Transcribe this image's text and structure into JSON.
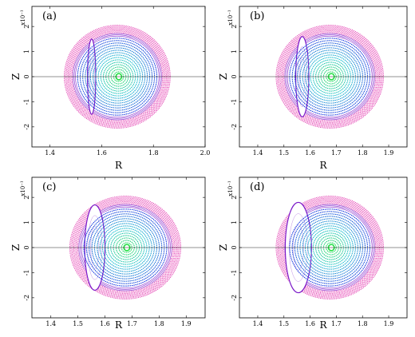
{
  "chart_data": [
    {
      "type": "scatter",
      "panel_label": "(a)",
      "xlabel": "R",
      "ylabel": "Z",
      "y_exponent": "x10⁻¹",
      "xlim": [
        1.33,
        2.0
      ],
      "ylim": [
        -0.28,
        0.28
      ],
      "xticks": [
        "1.4",
        "1.6",
        "1.8",
        "2.0"
      ],
      "xtick_values": [
        1.4,
        1.6,
        1.8,
        2.0
      ],
      "yticks": [
        "2",
        "1",
        "0",
        "-1",
        "-2"
      ],
      "ytick_values": [
        0.2,
        0.1,
        0.0,
        -0.1,
        -0.2
      ],
      "center_R": 1.66,
      "outer_radius": 0.205,
      "axis_line_z": 0.0,
      "shape_description": "concentric flux surfaces with narrow crescent island on the inboard side",
      "island": {
        "inner_R": 1.545,
        "width": 0.032,
        "z_extent": 0.15
      }
    },
    {
      "type": "scatter",
      "panel_label": "(b)",
      "xlabel": "R",
      "ylabel": "Z",
      "y_exponent": "x10⁻¹",
      "xlim": [
        1.33,
        1.97
      ],
      "ylim": [
        -0.28,
        0.28
      ],
      "xticks": [
        "1.4",
        "1.5",
        "1.6",
        "1.7",
        "1.8",
        "1.9"
      ],
      "xtick_values": [
        1.4,
        1.5,
        1.6,
        1.7,
        1.8,
        1.9
      ],
      "yticks": [
        "2",
        "1",
        "0",
        "-1",
        "-2"
      ],
      "ytick_values": [
        0.2,
        0.1,
        0.0,
        -0.1,
        -0.2
      ],
      "center_R": 1.675,
      "outer_radius": 0.205,
      "axis_line_z": 0.0,
      "island": {
        "inner_R": 1.545,
        "width": 0.05,
        "z_extent": 0.16
      }
    },
    {
      "type": "scatter",
      "panel_label": "(c)",
      "xlabel": "R",
      "ylabel": "Z",
      "y_exponent": "x10⁻¹",
      "xlim": [
        1.33,
        1.97
      ],
      "ylim": [
        -0.28,
        0.28
      ],
      "xticks": [
        "1.4",
        "1.5",
        "1.6",
        "1.7",
        "1.8",
        "1.9"
      ],
      "xtick_values": [
        1.4,
        1.5,
        1.6,
        1.7,
        1.8,
        1.9
      ],
      "yticks": [
        "2",
        "1",
        "0",
        "-1",
        "-2"
      ],
      "ytick_values": [
        0.2,
        0.1,
        0.0,
        -0.1,
        -0.2
      ],
      "center_R": 1.675,
      "outer_radius": 0.205,
      "axis_line_z": 0.0,
      "island": {
        "inner_R": 1.525,
        "width": 0.075,
        "z_extent": 0.17
      }
    },
    {
      "type": "scatter",
      "panel_label": "(d)",
      "xlabel": "R",
      "ylabel": "Z",
      "y_exponent": "x10⁻¹",
      "xlim": [
        1.33,
        1.97
      ],
      "ylim": [
        -0.28,
        0.28
      ],
      "xticks": [
        "1.4",
        "1.5",
        "1.6",
        "1.7",
        "1.8",
        "1.9"
      ],
      "xtick_values": [
        1.4,
        1.5,
        1.6,
        1.7,
        1.8,
        1.9
      ],
      "yticks": [
        "2",
        "1",
        "0",
        "-1",
        "-2"
      ],
      "ytick_values": [
        0.2,
        0.1,
        0.0,
        -0.1,
        -0.2
      ],
      "center_R": 1.675,
      "outer_radius": 0.205,
      "axis_line_z": 0.0,
      "island": {
        "inner_R": 1.505,
        "width": 0.1,
        "z_extent": 0.18
      }
    }
  ],
  "colors": {
    "outer_band": "#e040b0",
    "outer_band_light": "#f070c8",
    "core_inner": "#20e040",
    "core_mid": "#20c0d0",
    "core_outer": "#2040e0",
    "island_edge": "#7a18c8",
    "axis_line": "#222222"
  }
}
